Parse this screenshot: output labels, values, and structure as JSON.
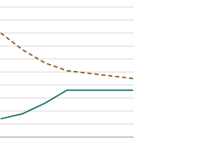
{
  "chart_data": {
    "type": "line",
    "x": [
      0,
      1,
      2,
      3,
      4,
      5,
      6
    ],
    "xlim": [
      0,
      6
    ],
    "ylim": [
      0,
      10
    ],
    "yticks": [
      0,
      1,
      2,
      3,
      4,
      5,
      6,
      7,
      8,
      9,
      10
    ],
    "grid": true,
    "series": [
      {
        "color": "#8c5a28",
        "dashed": true,
        "values": [
          8.0,
          6.7,
          5.7,
          5.1,
          4.9,
          4.7,
          4.5
        ]
      },
      {
        "color": "#1f6f6f",
        "dashed": false,
        "values": [
          1.4,
          1.8,
          2.6,
          3.6,
          3.6,
          3.6,
          3.6
        ]
      }
    ]
  }
}
